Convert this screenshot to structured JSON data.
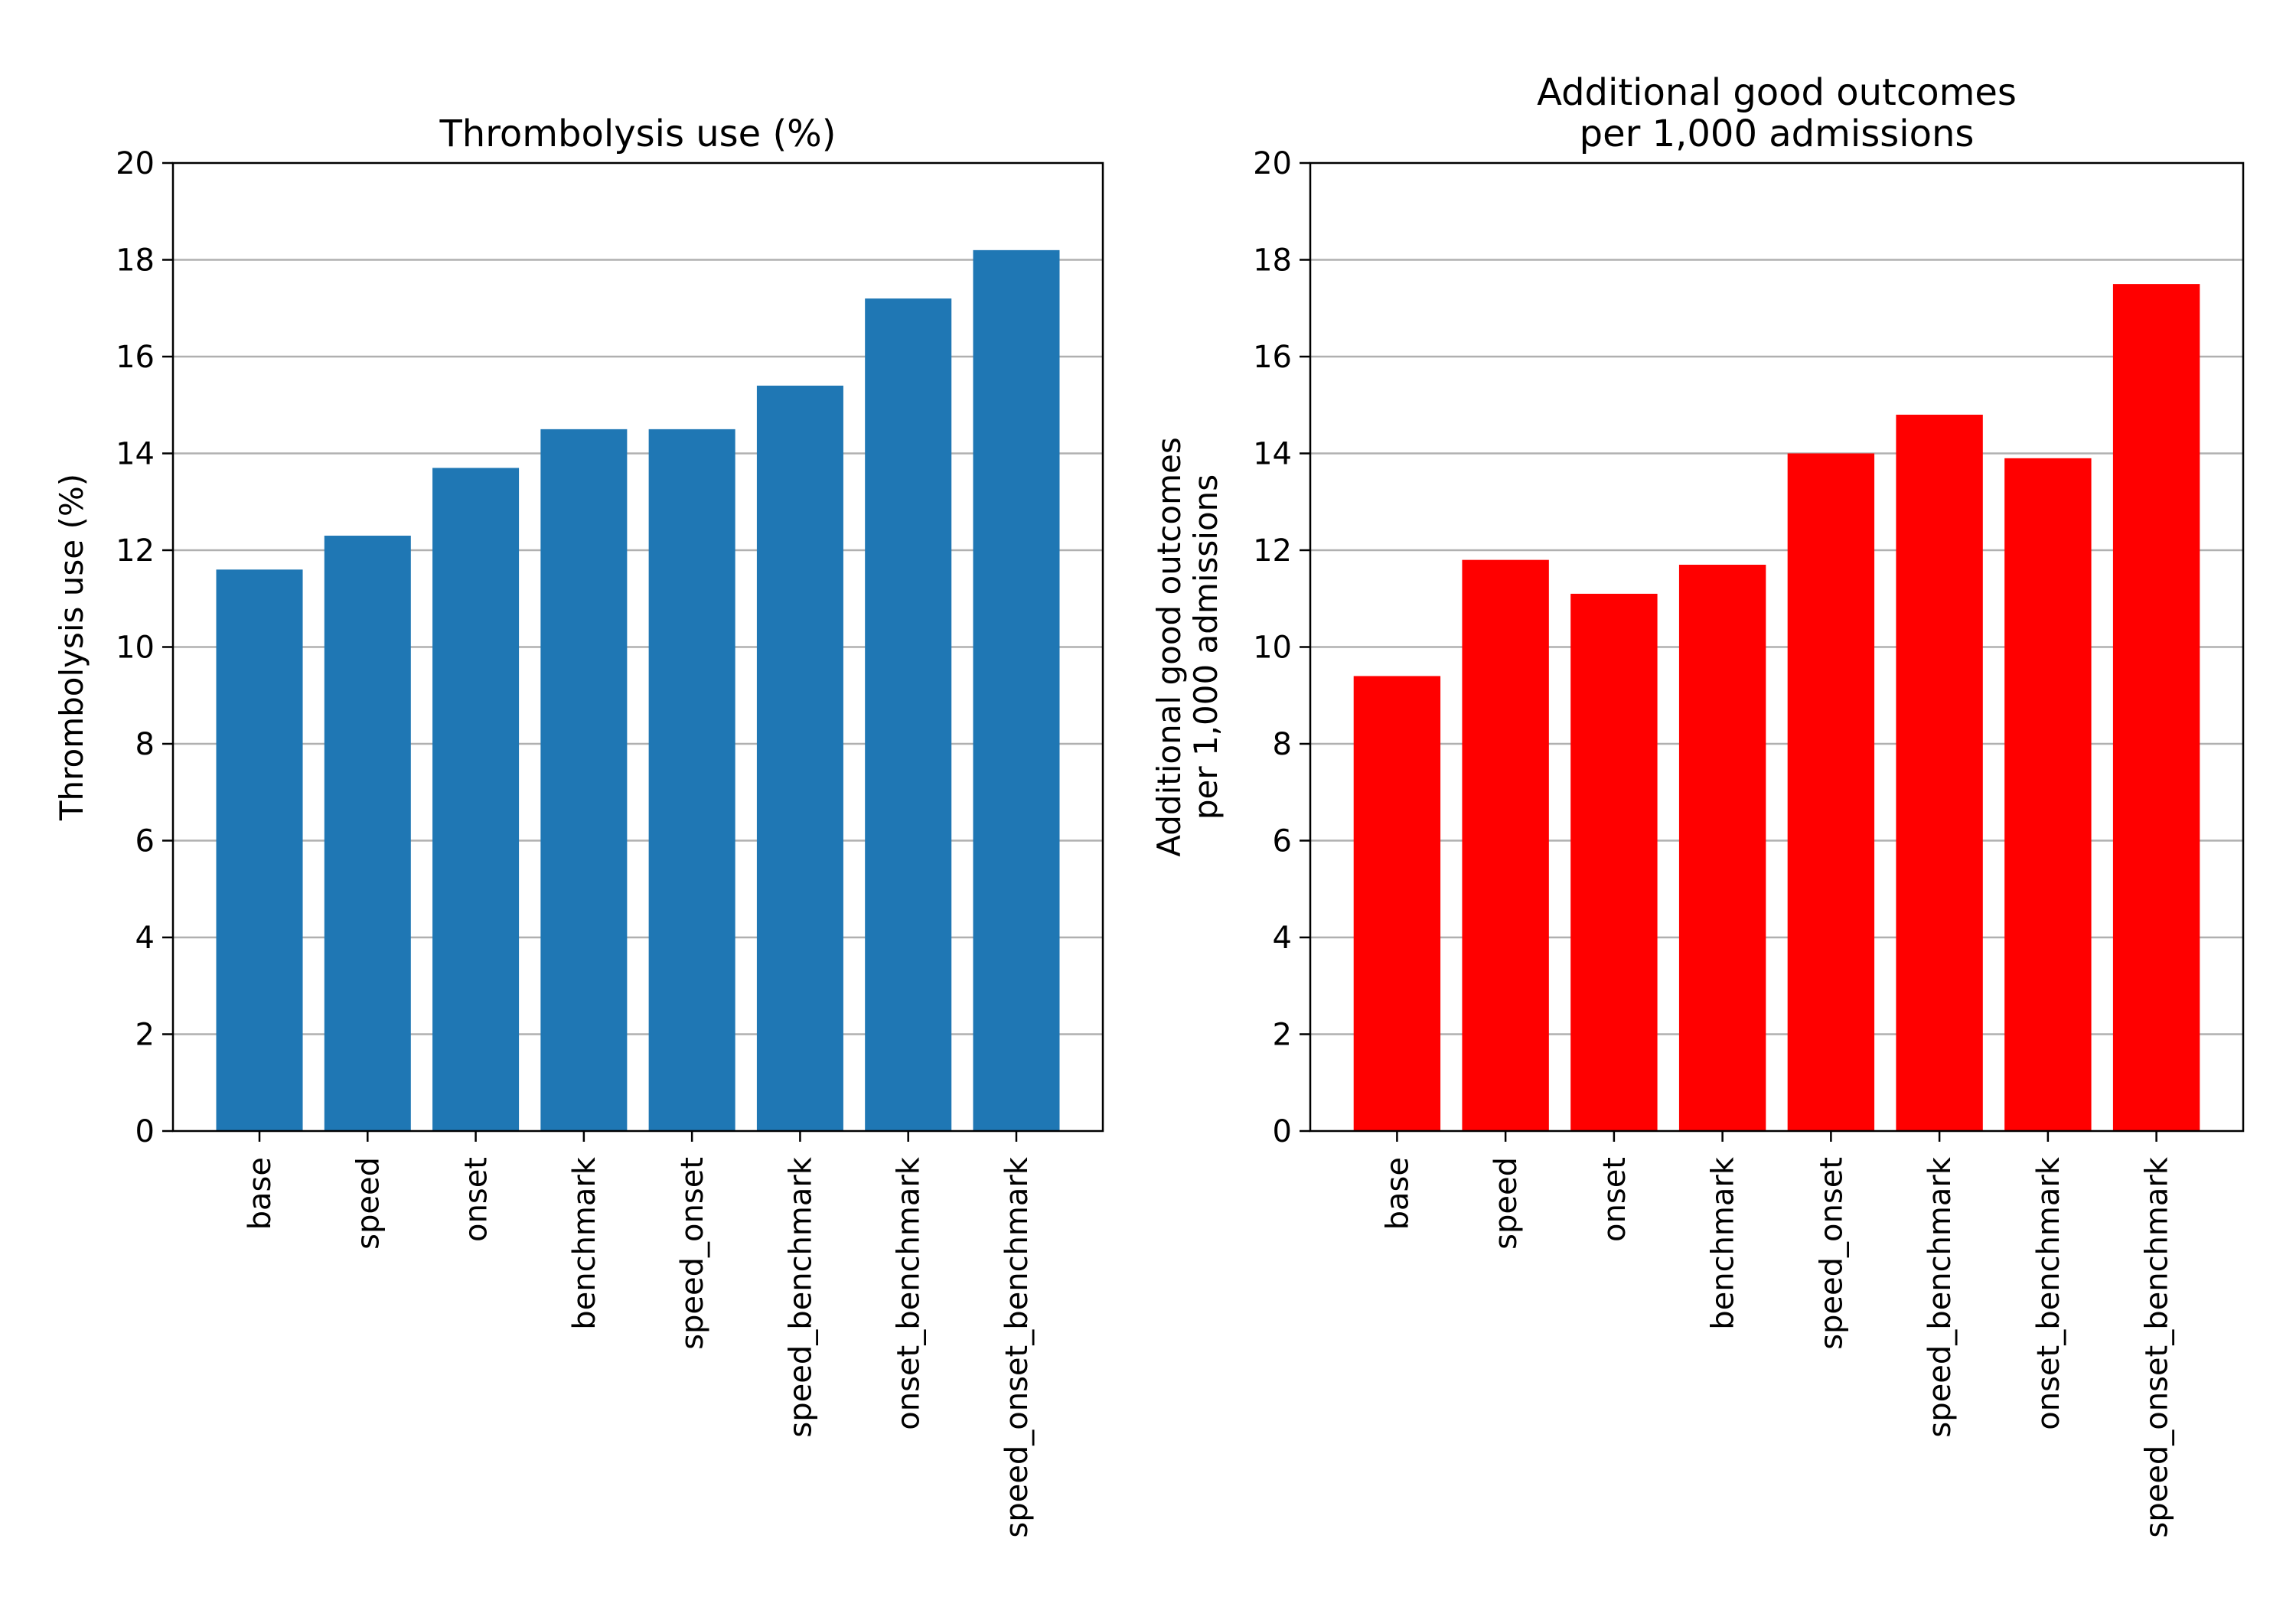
{
  "chart_data": [
    {
      "type": "bar",
      "title": [
        "Thrombolysis use (%)"
      ],
      "ylabel": [
        "Thrombolysis use (%)"
      ],
      "xlabel": "",
      "categories": [
        "base",
        "speed",
        "onset",
        "benchmark",
        "speed_onset",
        "speed_benchmark",
        "onset_benchmark",
        "speed_onset_benchmark"
      ],
      "values": [
        11.6,
        12.3,
        13.7,
        14.5,
        14.5,
        15.4,
        17.2,
        18.2
      ],
      "ylim": [
        0,
        20
      ],
      "yticks": [
        "0",
        "2",
        "4",
        "6",
        "8",
        "10",
        "12",
        "14",
        "16",
        "18",
        "20"
      ],
      "grid": "horizontal",
      "color": "#1f77b4"
    },
    {
      "type": "bar",
      "title": [
        "Additional good outcomes",
        "per 1,000 admissions"
      ],
      "ylabel": [
        "Additional good outcomes",
        "per 1,000 admissions"
      ],
      "xlabel": "",
      "categories": [
        "base",
        "speed",
        "onset",
        "benchmark",
        "speed_onset",
        "speed_benchmark",
        "onset_benchmark",
        "speed_onset_benchmark"
      ],
      "values": [
        9.4,
        11.8,
        11.1,
        11.7,
        14.0,
        14.8,
        13.9,
        17.5
      ],
      "ylim": [
        0,
        20
      ],
      "yticks": [
        "0",
        "2",
        "4",
        "6",
        "8",
        "10",
        "12",
        "14",
        "16",
        "18",
        "20"
      ],
      "grid": "horizontal",
      "color": "#ff0000"
    }
  ]
}
